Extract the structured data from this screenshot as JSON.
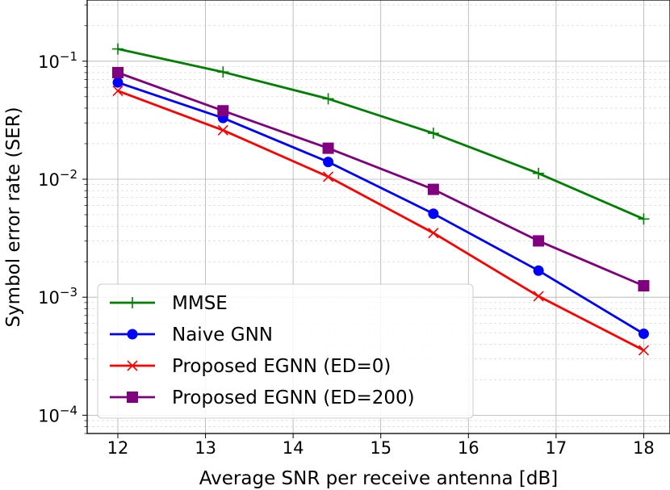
{
  "chart_data": {
    "type": "line",
    "xscale": "linear",
    "yscale": "log",
    "xlabel": "Average SNR per receive antenna [dB]",
    "ylabel": "Symbol error rate (SER)",
    "xlim": [
      11.65,
      18.3
    ],
    "ylim": [
      7e-05,
      0.33
    ],
    "x_ticks": [
      12,
      13,
      14,
      15,
      16,
      17,
      18
    ],
    "x_tick_labels": [
      "12",
      "13",
      "14",
      "15",
      "16",
      "17",
      "18"
    ],
    "y_ticks": [
      0.1,
      0.01,
      0.001,
      0.0001
    ],
    "y_tick_labels": [
      {
        "base": "10",
        "exp": "−1"
      },
      {
        "base": "10",
        "exp": "−2"
      },
      {
        "base": "10",
        "exp": "−3"
      },
      {
        "base": "10",
        "exp": "−4"
      }
    ],
    "grid": "major and minor",
    "legend_position": "lower-left",
    "x": [
      12,
      13.2,
      14.4,
      15.6,
      16.8,
      18
    ],
    "series": [
      {
        "name": "MMSE",
        "color": "#008000",
        "marker": "plus",
        "values": [
          0.127,
          0.081,
          0.048,
          0.0245,
          0.0112,
          0.0046
        ]
      },
      {
        "name": "Naive GNN",
        "color": "#0000ff",
        "marker": "circle",
        "values": [
          0.066,
          0.033,
          0.014,
          0.0051,
          0.00168,
          0.00049
        ]
      },
      {
        "name": "Proposed EGNN (ED=0)",
        "color": "#ff0000",
        "marker": "x",
        "values": [
          0.056,
          0.026,
          0.0105,
          0.0035,
          0.00102,
          0.000355
        ]
      },
      {
        "name": "Proposed EGNN (ED=200)",
        "color": "#800080",
        "marker": "square",
        "values": [
          0.08,
          0.038,
          0.0183,
          0.0082,
          0.003,
          0.00125
        ]
      }
    ]
  }
}
